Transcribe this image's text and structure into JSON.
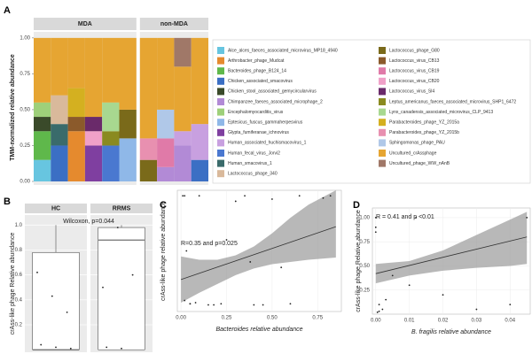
{
  "chart_data": [
    {
      "type": "stacked_bar",
      "panel": "A",
      "ylabel": "TMM-normalized relative abundance",
      "facets": [
        "MDA",
        "non-MDA"
      ],
      "sample_facet": [
        "MDA",
        "MDA",
        "MDA",
        "MDA",
        "MDA",
        "MDA",
        "non-MDA",
        "non-MDA",
        "non-MDA",
        "non-MDA"
      ],
      "categories": [
        null,
        null,
        null,
        null,
        null,
        null,
        null,
        null,
        null,
        null
      ],
      "ylim": [
        0,
        1.03
      ],
      "yticks": [
        {
          "value": 0,
          "label": "0.00"
        },
        0.25,
        {
          "value": 0.5,
          "label": "0.50"
        },
        0.75,
        {
          "value": 1,
          "label": "1.00"
        }
      ],
      "series": [
        {
          "name": "Alce_alces_faeces_associated_microvirus_MP18_4940",
          "color": "#67c5e0",
          "values": [
            0.15,
            0,
            0,
            0,
            0,
            0,
            0,
            0,
            0,
            0
          ]
        },
        {
          "name": "Arthrobacter_phage_Mudcat",
          "color": "#e58a2e",
          "values": [
            0,
            0,
            0.35,
            0,
            0,
            0,
            0,
            0,
            0,
            0
          ]
        },
        {
          "name": "Bacteroides_phage_B124_14",
          "color": "#5fb84b",
          "values": [
            0.2,
            0,
            0,
            0,
            0,
            0,
            0,
            0,
            0,
            0
          ]
        },
        {
          "name": "Chicken_associated_smacovirus",
          "color": "#3b6fc4",
          "values": [
            0,
            0.25,
            0,
            0,
            0,
            0,
            0,
            0,
            0,
            0.15
          ]
        },
        {
          "name": "Chicken_stool_associated_gemycircularvirus",
          "color": "#3a4a2a",
          "values": [
            0.1,
            0,
            0,
            0,
            0,
            0,
            0,
            0,
            0,
            0
          ]
        },
        {
          "name": "Chimpanzee_faeces_associated_microphage_2",
          "color": "#b28ad6",
          "values": [
            0,
            0,
            0,
            0,
            0,
            0,
            0,
            0.1,
            0.25,
            0
          ]
        },
        {
          "name": "Encephalomyocarditis_virus",
          "color": "#9ed07a",
          "values": [
            0.1,
            0,
            0,
            0,
            0,
            0,
            0,
            0,
            0,
            0
          ]
        },
        {
          "name": "Eptesicus_fuscus_gammaherpesvirus",
          "color": "#8fb8e8",
          "values": [
            0,
            0,
            0,
            0,
            0,
            0.3,
            0,
            0,
            0,
            0
          ]
        },
        {
          "name": "Glypta_fumiferanae_ichnovirus",
          "color": "#7f3fa0",
          "values": [
            0,
            0,
            0,
            0.25,
            0,
            0,
            0,
            0,
            0,
            0
          ]
        },
        {
          "name": "Human_associated_huchismacovirus_1",
          "color": "#c8a0e0",
          "values": [
            0,
            0,
            0,
            0,
            0,
            0,
            0,
            0,
            0.1,
            0.25
          ]
        },
        {
          "name": "Human_fecal_virus_Jorvi2",
          "color": "#4a78d0",
          "values": [
            0,
            0,
            0,
            0,
            0.25,
            0,
            0,
            0,
            0,
            0
          ]
        },
        {
          "name": "Human_smacovirus_1",
          "color": "#3a6b6b",
          "values": [
            0,
            0.15,
            0,
            0,
            0,
            0,
            0,
            0,
            0,
            0
          ]
        },
        {
          "name": "Lactococcus_phage_340",
          "color": "#d9b99b",
          "values": [
            0,
            0.2,
            0,
            0,
            0,
            0,
            0,
            0,
            0,
            0
          ]
        },
        {
          "name": "Lactococcus_phage_G80",
          "color": "#7a6a1a",
          "values": [
            0,
            0,
            0,
            0,
            0,
            0.2,
            0.15,
            0,
            0,
            0
          ]
        },
        {
          "name": "Lactococcus_virus_CB13",
          "color": "#8b5a2b",
          "values": [
            0,
            0,
            0.1,
            0,
            0,
            0,
            0,
            0,
            0,
            0
          ]
        },
        {
          "name": "Lactococcus_virus_CB19",
          "color": "#e07aa8",
          "values": [
            0,
            0,
            0,
            0,
            0,
            0,
            0,
            0.2,
            0,
            0
          ]
        },
        {
          "name": "Lactococcus_virus_CB20",
          "color": "#f0a0c8",
          "values": [
            0,
            0,
            0,
            0.1,
            0,
            0,
            0,
            0,
            0,
            0
          ]
        },
        {
          "name": "Lactococcus_virus_Sl4",
          "color": "#6a2a6a",
          "values": [
            0,
            0,
            0,
            0.1,
            0,
            0,
            0,
            0,
            0,
            0
          ]
        },
        {
          "name": "Leptus_americanus_faeces_associated_microvirus_SHP1_6472",
          "color": "#8a8a20",
          "values": [
            0,
            0,
            0,
            0,
            0.1,
            0,
            0,
            0,
            0,
            0
          ]
        },
        {
          "name": "Lynx_canadensis_associated_microvirus_CLP_9413",
          "color": "#a8d890",
          "values": [
            0,
            0,
            0,
            0,
            0.2,
            0,
            0,
            0,
            0,
            0
          ]
        },
        {
          "name": "Parabacteroides_phage_YZ_2015a",
          "color": "#d4b020",
          "values": [
            0,
            0,
            0.2,
            0,
            0,
            0,
            0,
            0,
            0,
            0
          ]
        },
        {
          "name": "Parabacteroides_phage_YZ_2015b",
          "color": "#e890b0",
          "values": [
            0,
            0,
            0,
            0,
            0,
            0,
            0.15,
            0,
            0,
            0
          ]
        },
        {
          "name": "Sphingomonas_phage_PAU",
          "color": "#b0c8e8",
          "values": [
            0,
            0,
            0,
            0,
            0,
            0,
            0,
            0.2,
            0,
            0
          ]
        },
        {
          "name": "Uncultured_crAssphage",
          "color": "#e6a532",
          "values": [
            0.45,
            0.4,
            0.35,
            0.55,
            0.45,
            0.5,
            0.7,
            0.5,
            0.45,
            0.6
          ]
        },
        {
          "name": "Uncultured_phage_WW_nAnB",
          "color": "#a07868",
          "values": [
            0,
            0,
            0,
            0,
            0,
            0,
            0,
            0,
            0.2,
            0
          ]
        }
      ]
    },
    {
      "type": "box",
      "panel": "B",
      "ylabel": "crAss-like phage Relative abundance",
      "annotation": "Wilcoxon, p=0.044",
      "ylim": [
        -0.02,
        1.08
      ],
      "yticks": [
        {
          "value": 0.2,
          "label": "0.2"
        },
        0.4,
        0.6,
        0.8,
        {
          "value": 1,
          "label": "1.0"
        }
      ],
      "boxes": [
        {
          "name": "HC",
          "min": 0,
          "q1": 0,
          "median": 0,
          "q3": 0.78,
          "max": 1,
          "points": [
            0.62,
            0.43,
            0.3,
            0.04,
            0.02,
            0.01
          ]
        },
        {
          "name": "RRMS",
          "min": 0,
          "q1": 0,
          "median": 0.88,
          "q3": 0.98,
          "max": 1,
          "points": [
            0.5,
            0.98,
            0.6,
            0.02,
            0.01
          ]
        }
      ]
    },
    {
      "type": "scatter",
      "panel": "C",
      "annotation": "R=0.35 and p=0.025",
      "xlabel": "Bacteroides relative abundance",
      "ylabel": "crAss-like phage relative abundance",
      "xlim": [
        -0.02,
        0.88
      ],
      "ylim": [
        -0.05,
        1.05
      ],
      "xticks": [
        {
          "value": 0,
          "label": "0.00"
        },
        0.25,
        {
          "value": 0.5,
          "label": "0.50"
        },
        0.75
      ],
      "points": {
        "x": [
          0.01,
          0.02,
          0.05,
          0.1,
          0.18,
          0.3,
          0.35,
          0.45,
          0.5,
          0.65,
          0.78,
          0.82,
          0.02,
          0.05,
          0.08,
          0.15,
          0.22,
          0.4,
          0.6,
          0.03,
          0.25,
          0.38,
          0.55
        ],
        "y": [
          1,
          1,
          0.02,
          1,
          0.01,
          0.95,
          1,
          0.01,
          0.97,
          1,
          0.98,
          1,
          0.05,
          0.02,
          0.03,
          0.01,
          0.02,
          0.01,
          0.02,
          0.5,
          0.6,
          0.4,
          0.35
        ]
      },
      "fit": {
        "x": [
          0,
          0.85
        ],
        "y": [
          0.24,
          0.72
        ]
      },
      "band": {
        "x": [
          0,
          0.1,
          0.2,
          0.3,
          0.4,
          0.5,
          0.6,
          0.7,
          0.85
        ],
        "lower": [
          0.03,
          0.12,
          0.2,
          0.28,
          0.34,
          0.38,
          0.4,
          0.42,
          0.44
        ],
        "upper": [
          0.45,
          0.42,
          0.42,
          0.46,
          0.54,
          0.66,
          0.8,
          0.92,
          1.05
        ]
      }
    },
    {
      "type": "scatter",
      "panel": "D",
      "annotation": "R = 0.41 and p <0.01",
      "xlabel": "B. fragilis relative abundance",
      "ylabel": "crAss-like phage Relative abundance",
      "xlim": [
        -0.001,
        0.046
      ],
      "ylim": [
        0,
        1.1
      ],
      "xticks": [
        {
          "value": 0,
          "label": "0.00"
        },
        0.01,
        0.02,
        0.03,
        0.04
      ],
      "yticks": [
        0.25,
        {
          "value": 0.5,
          "label": "0.50"
        },
        0.75,
        {
          "value": 1,
          "label": "1.00"
        }
      ],
      "points": {
        "x": [
          0,
          0,
          0,
          0.001,
          0.002,
          0.01,
          0.012,
          0.02,
          0.03,
          0.045,
          0.0005,
          0.001,
          0.003,
          0.005,
          0.04
        ],
        "y": [
          1,
          0.9,
          0.85,
          0.1,
          0.05,
          0.3,
          1,
          0.2,
          0.05,
          1,
          0.02,
          0.03,
          0.15,
          0.4,
          0.1
        ]
      },
      "fit": {
        "x": [
          0,
          0.045
        ],
        "y": [
          0.42,
          0.8
        ]
      },
      "band": {
        "x": [
          0,
          0.01,
          0.02,
          0.03,
          0.04,
          0.045
        ],
        "lower": [
          0.32,
          0.4,
          0.45,
          0.48,
          0.5,
          0.52
        ],
        "upper": [
          0.52,
          0.55,
          0.66,
          0.82,
          0.98,
          1.06
        ]
      }
    }
  ]
}
